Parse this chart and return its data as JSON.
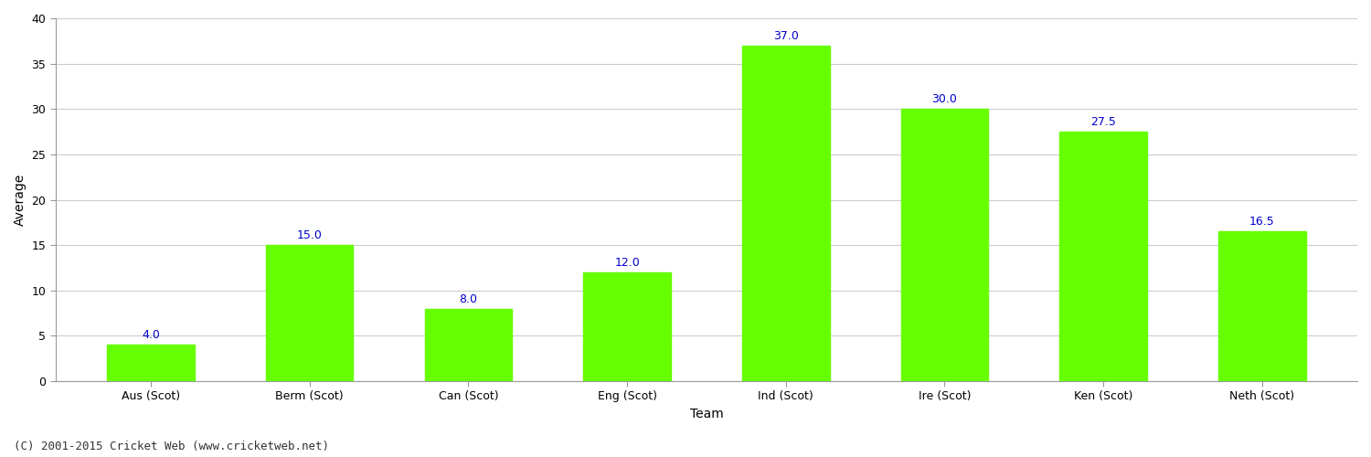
{
  "categories": [
    "Aus (Scot)",
    "Berm (Scot)",
    "Can (Scot)",
    "Eng (Scot)",
    "Ind (Scot)",
    "Ire (Scot)",
    "Ken (Scot)",
    "Neth (Scot)"
  ],
  "values": [
    4.0,
    15.0,
    8.0,
    12.0,
    37.0,
    30.0,
    27.5,
    16.5
  ],
  "bar_color": "#66ff00",
  "bar_edge_color": "#66ff00",
  "xlabel": "Team",
  "ylabel": "Average",
  "ylim": [
    0,
    40
  ],
  "yticks": [
    0,
    5,
    10,
    15,
    20,
    25,
    30,
    35,
    40
  ],
  "label_color": "#0000cc",
  "label_fontsize": 9,
  "axis_fontsize": 10,
  "tick_fontsize": 9,
  "background_color": "#ffffff",
  "grid_color": "#cccccc",
  "footer_text": "(C) 2001-2015 Cricket Web (www.cricketweb.net)",
  "footer_fontsize": 9,
  "footer_color": "#333333"
}
